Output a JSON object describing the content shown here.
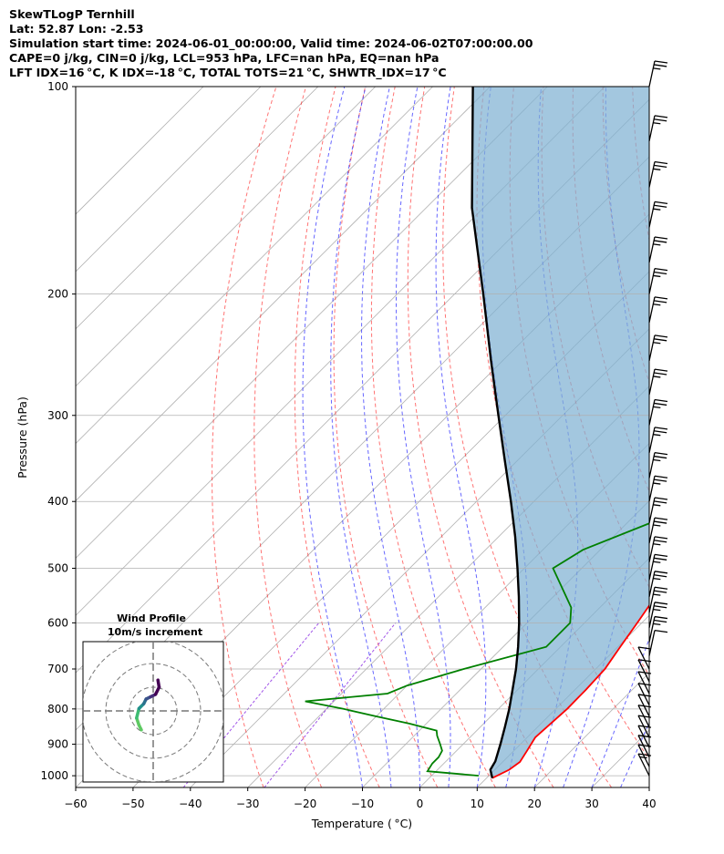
{
  "header": {
    "line1": "SkewTLogP Ternhill",
    "line2": "Lat: 52.87   Lon: -2.53",
    "line3": "Simulation start time: 2024-06-01_00:00:00, Valid time: 2024-06-02T07:00:00.00",
    "line4": "CAPE=0 j/kg, CIN=0 j/kg, LCL=953 hPa, LFC=nan hPa, EQ=nan hPa",
    "line5": "LFT IDX=16 °C, K IDX=-18 °C, TOTAL TOTS=21 °C, SHWTR_IDX=17 °C"
  },
  "chart_data": {
    "type": "line",
    "title": "SkewTLogP Ternhill",
    "xlabel": "Temperature ( °C)",
    "ylabel": "Pressure (hPa)",
    "xlim": [
      -60,
      40
    ],
    "ylim": [
      1040,
      100
    ],
    "y_scale": "log",
    "grid": true,
    "x_ticks": [
      -60,
      -50,
      -40,
      -30,
      -20,
      -10,
      0,
      10,
      20,
      30,
      40
    ],
    "x_tick_labels": [
      "−60",
      "−50",
      "−40",
      "−30",
      "−20",
      "−10",
      "0",
      "10",
      "20",
      "30",
      "40"
    ],
    "y_ticks": [
      1000,
      900,
      800,
      700,
      600,
      500,
      400,
      300,
      200,
      100
    ],
    "y_tick_labels": [
      "1000",
      "900",
      "800",
      "700",
      "600",
      "500",
      "400",
      "300",
      "200",
      "100"
    ],
    "series": [
      {
        "name": "temperature",
        "color": "#ff0000",
        "points": [
          [
            1008,
            11
          ],
          [
            980,
            12.5
          ],
          [
            955,
            13
          ],
          [
            920,
            12.3
          ],
          [
            880,
            11.4
          ],
          [
            850,
            11.6
          ],
          [
            800,
            12
          ],
          [
            750,
            11.9
          ],
          [
            700,
            11.6
          ],
          [
            650,
            10.4
          ],
          [
            600,
            9.2
          ],
          [
            550,
            7.8
          ],
          [
            500,
            5.8
          ],
          [
            450,
            2.2
          ],
          [
            400,
            -2.6
          ],
          [
            350,
            -8.5
          ],
          [
            300,
            -15
          ],
          [
            270,
            -19.5
          ],
          [
            250,
            -22.4
          ],
          [
            230,
            -25
          ],
          [
            200,
            -30.5
          ],
          [
            180,
            -36
          ],
          [
            160,
            -42.5
          ],
          [
            140,
            -49
          ],
          [
            120,
            -57
          ],
          [
            100,
            -67
          ]
        ]
      },
      {
        "name": "dewpoint",
        "color": "#008000",
        "points": [
          [
            1000,
            8.2
          ],
          [
            985,
            -1.5
          ],
          [
            960,
            -2
          ],
          [
            940,
            -2
          ],
          [
            920,
            -2.5
          ],
          [
            900,
            -4
          ],
          [
            875,
            -6
          ],
          [
            860,
            -7
          ],
          [
            840,
            -13
          ],
          [
            820,
            -20
          ],
          [
            800,
            -27
          ],
          [
            780,
            -35
          ],
          [
            760,
            -22
          ],
          [
            740,
            -20
          ],
          [
            700,
            -13
          ],
          [
            650,
            -2.5
          ],
          [
            600,
            -2.5
          ],
          [
            570,
            -5
          ],
          [
            500,
            -15
          ],
          [
            470,
            -13
          ],
          [
            430,
            -6
          ],
          [
            400,
            -5
          ],
          [
            370,
            -10
          ],
          [
            350,
            -12
          ],
          [
            330,
            -16
          ],
          [
            300,
            -16
          ],
          [
            280,
            -17.5
          ],
          [
            260,
            -20.5
          ],
          [
            240,
            -24.5
          ],
          [
            230,
            -27
          ],
          [
            200,
            -31
          ],
          [
            180,
            -34.5
          ],
          [
            165,
            -39.5
          ],
          [
            150,
            -42
          ],
          [
            140,
            -41.5
          ],
          [
            120,
            -48
          ],
          [
            100,
            -59
          ]
        ]
      },
      {
        "name": "parcel profile",
        "color": "#000000",
        "points": [
          [
            1008,
            11
          ],
          [
            980,
            9.2
          ],
          [
            953,
            8.6
          ],
          [
            900,
            6.5
          ],
          [
            850,
            4.3
          ],
          [
            800,
            1.9
          ],
          [
            750,
            -0.9
          ],
          [
            700,
            -3.9
          ],
          [
            650,
            -7.4
          ],
          [
            600,
            -11.4
          ],
          [
            550,
            -16.0
          ],
          [
            500,
            -21.2
          ],
          [
            450,
            -27.1
          ],
          [
            400,
            -34.0
          ],
          [
            350,
            -42
          ],
          [
            300,
            -51.2
          ],
          [
            250,
            -62
          ],
          [
            200,
            -75
          ],
          [
            150,
            -92
          ],
          [
            100,
            -113
          ]
        ]
      }
    ],
    "shaded_region": {
      "description_color": "#7fb1d3",
      "between": [
        "temperature",
        "parcel profile"
      ]
    },
    "reference_lines": {
      "dry_adiabats_color": "#ff0000",
      "moist_adiabats_color": "#0000ff",
      "mixing_ratio_color": "#8a2be2",
      "isotherms_color": "#b0b0b0"
    },
    "hodograph": {
      "title": "Wind Profile",
      "subtitle": "10m/s increment",
      "points": [
        [
          -5,
          -8
        ],
        [
          -6,
          -6
        ],
        [
          -7,
          -3
        ],
        [
          -6,
          1
        ],
        [
          -4,
          3
        ],
        [
          -3,
          5
        ],
        [
          -1,
          6
        ],
        [
          1,
          7
        ],
        [
          2.5,
          10
        ],
        [
          2,
          13
        ]
      ]
    },
    "wind_barbs": {
      "levels": [
        1000,
        970,
        940,
        910,
        880,
        850,
        820,
        790,
        760,
        730,
        700,
        670,
        640,
        610,
        580,
        550,
        520,
        490,
        460,
        430,
        400,
        370,
        340,
        310,
        280,
        250,
        220,
        200,
        180,
        160,
        140,
        120,
        100
      ],
      "speeds_kt": [
        5,
        10,
        10,
        10,
        10,
        10,
        10,
        10,
        10,
        10,
        10,
        10,
        15,
        15,
        15,
        15,
        15,
        15,
        15,
        15,
        15,
        15,
        15,
        15,
        15,
        15,
        15,
        15,
        15,
        15,
        15,
        15,
        15
      ]
    }
  }
}
